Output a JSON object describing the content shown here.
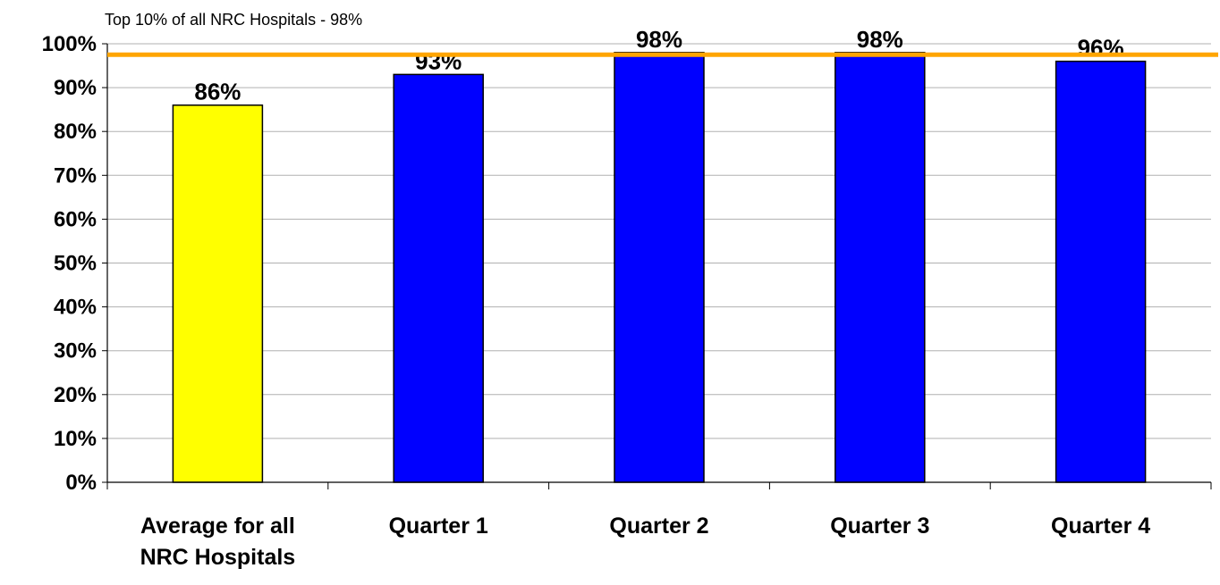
{
  "chart_data": {
    "type": "bar",
    "categories": [
      [
        "Average for all",
        "NRC Hospitals"
      ],
      [
        "Quarter 1"
      ],
      [
        "Quarter 2"
      ],
      [
        "Quarter 3"
      ],
      [
        "Quarter 4"
      ]
    ],
    "values": [
      86,
      93,
      98,
      98,
      96
    ],
    "data_labels": [
      "86%",
      "93%",
      "98%",
      "98%",
      "96%"
    ],
    "bar_colors": [
      "#ffff00",
      "#0000ff",
      "#0000ff",
      "#0000ff",
      "#0000ff"
    ],
    "ylim": [
      0,
      100
    ],
    "yticks": [
      0,
      10,
      20,
      30,
      40,
      50,
      60,
      70,
      80,
      90,
      100
    ],
    "ytick_labels": [
      "0%",
      "10%",
      "20%",
      "30%",
      "40%",
      "50%",
      "60%",
      "70%",
      "80%",
      "90%",
      "100%"
    ],
    "grid": true,
    "reference_line": {
      "value": 97.5,
      "label": "Top 10% of  all NRC Hospitals - 98%",
      "color": "#ffa500"
    },
    "title": "",
    "xlabel": "",
    "ylabel": ""
  }
}
